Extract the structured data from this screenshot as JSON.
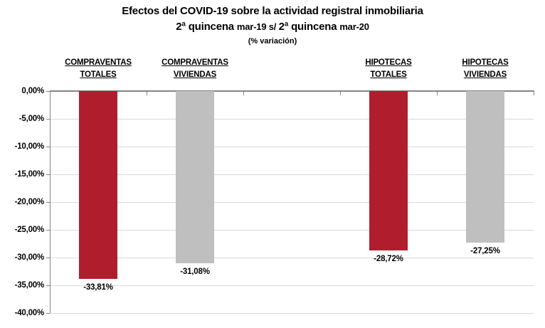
{
  "title": "Efectos del COVID-19 sobre la actividad registral inmobiliaria",
  "subtitle_parts": [
    {
      "text": "2ª quincena ",
      "large": true
    },
    {
      "text": "mar-19 s/ ",
      "large": false
    },
    {
      "text": "2ª quincena ",
      "large": true
    },
    {
      "text": "mar-20",
      "large": false
    }
  ],
  "units_note": "(% variación)",
  "colors": {
    "bar_red": "#b01e2e",
    "bar_gray": "#bfbfbf",
    "gridline": "#d9d9d9",
    "axis": "#848484",
    "text": "#000000"
  },
  "chart_data": {
    "type": "bar",
    "title": "Efectos del COVID-19 sobre la actividad registral inmobiliaria",
    "subtitle": "2ª quincena mar-19 s/ 2ª quincena mar-20",
    "units": "(% variación)",
    "categories": [
      "COMPRAVENTAS TOTALES",
      "COMPRAVENTAS VIVIENDAS",
      "HIPOTECAS TOTALES",
      "HIPOTECAS VIVIENDAS"
    ],
    "values": [
      -33.81,
      -31.08,
      -28.72,
      -27.25
    ],
    "value_labels": [
      "-33,81%",
      "-31,08%",
      "-28,72%",
      "-27,25%"
    ],
    "bar_colors": [
      "#b01e2e",
      "#bfbfbf",
      "#b01e2e",
      "#bfbfbf"
    ],
    "category_slots": [
      0,
      1,
      3,
      4
    ],
    "num_slots": 5,
    "xlabel": "",
    "ylabel": "",
    "ylim": [
      -40,
      0
    ],
    "ytick_step": 5,
    "ytick_labels": [
      "0,00%",
      "-5,00%",
      "-10,00%",
      "-15,00%",
      "-20,00%",
      "-25,00%",
      "-30,00%",
      "-35,00%",
      "-40,00%"
    ],
    "grid": true,
    "legend": false
  }
}
